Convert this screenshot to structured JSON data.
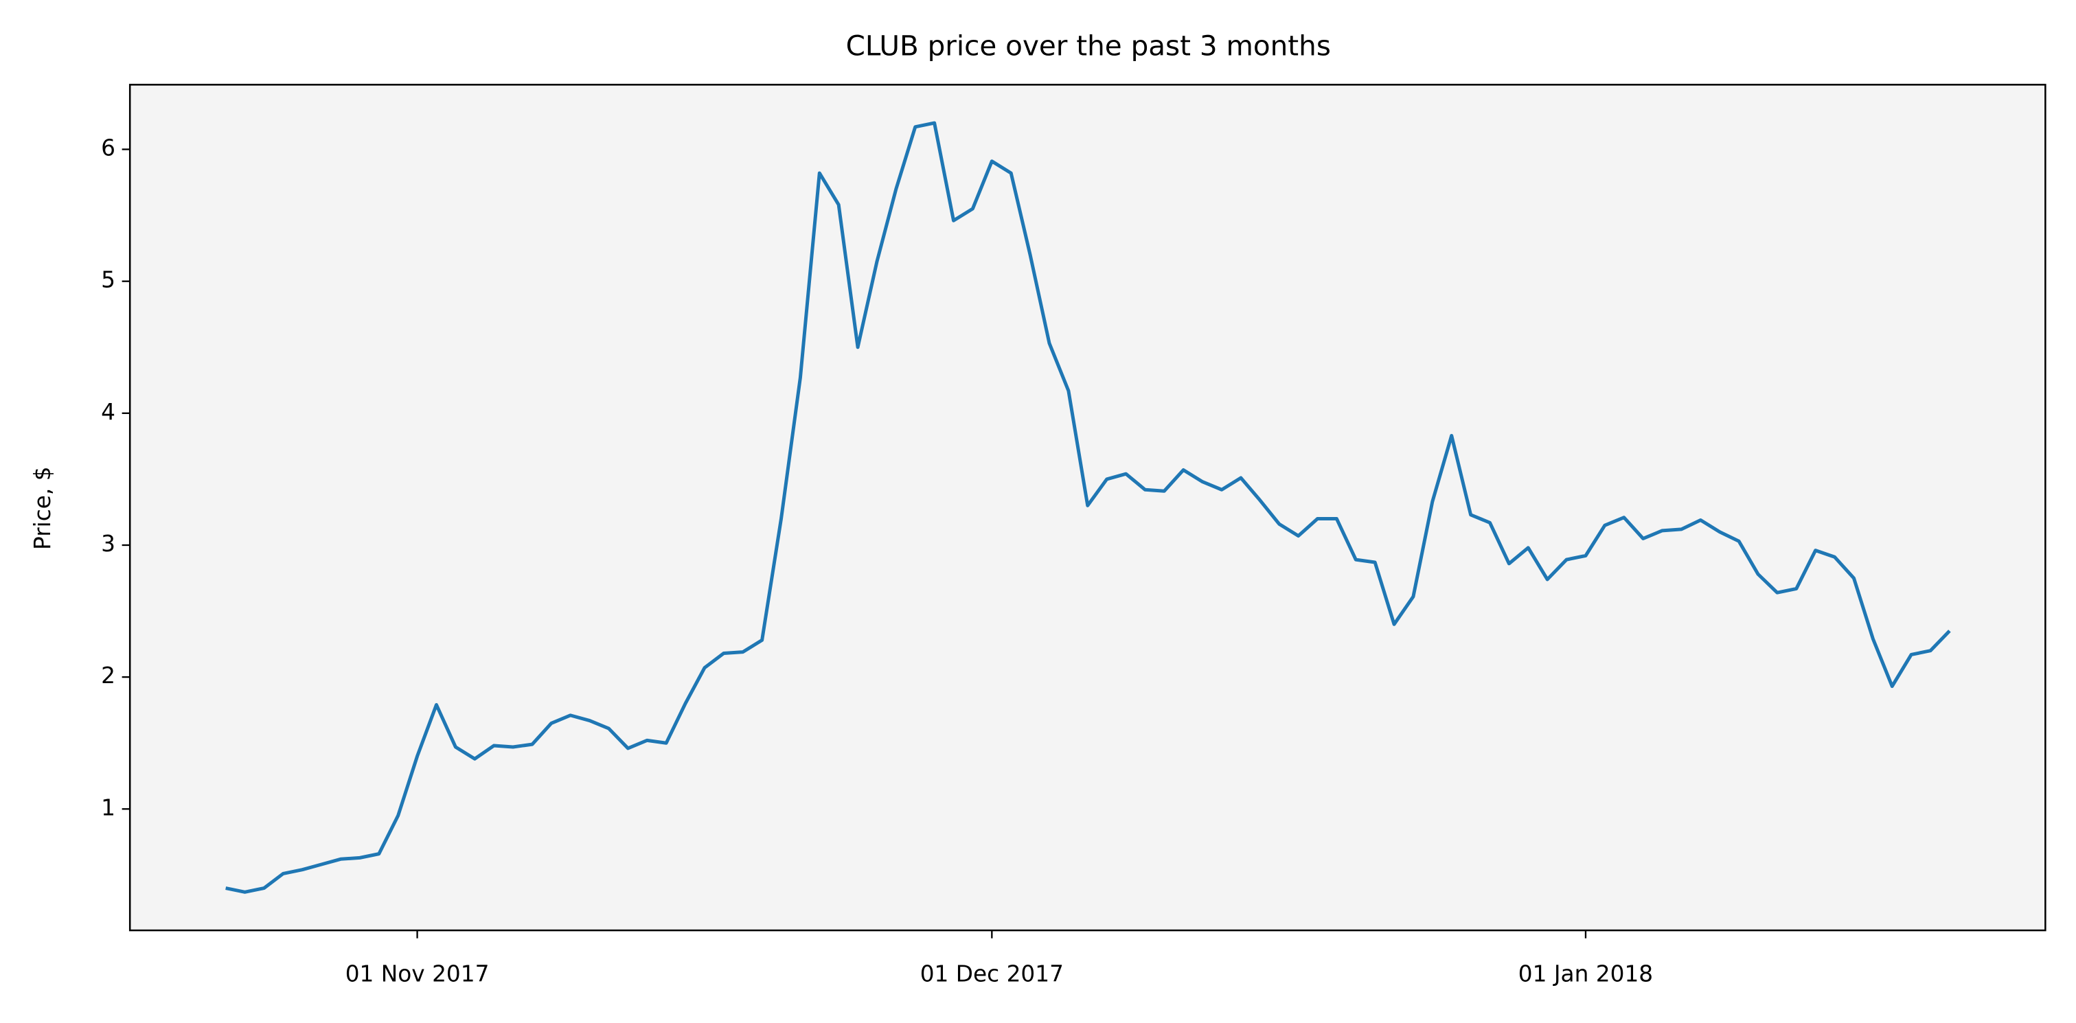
{
  "chart_data": {
    "type": "line",
    "title": "CLUB price over the past 3 months",
    "ylabel": "Price, $",
    "x": [
      "2017-10-22",
      "2017-10-23",
      "2017-10-24",
      "2017-10-25",
      "2017-10-26",
      "2017-10-27",
      "2017-10-28",
      "2017-10-29",
      "2017-10-30",
      "2017-10-31",
      "2017-11-01",
      "2017-11-02",
      "2017-11-03",
      "2017-11-04",
      "2017-11-05",
      "2017-11-06",
      "2017-11-07",
      "2017-11-08",
      "2017-11-09",
      "2017-11-10",
      "2017-11-11",
      "2017-11-12",
      "2017-11-13",
      "2017-11-14",
      "2017-11-15",
      "2017-11-16",
      "2017-11-17",
      "2017-11-18",
      "2017-11-19",
      "2017-11-20",
      "2017-11-21",
      "2017-11-22",
      "2017-11-23",
      "2017-11-24",
      "2017-11-25",
      "2017-11-26",
      "2017-11-27",
      "2017-11-28",
      "2017-11-29",
      "2017-11-30",
      "2017-12-01",
      "2017-12-02",
      "2017-12-03",
      "2017-12-04",
      "2017-12-05",
      "2017-12-06",
      "2017-12-07",
      "2017-12-08",
      "2017-12-09",
      "2017-12-10",
      "2017-12-11",
      "2017-12-12",
      "2017-12-13",
      "2017-12-14",
      "2017-12-15",
      "2017-12-16",
      "2017-12-17",
      "2017-12-18",
      "2017-12-19",
      "2017-12-20",
      "2017-12-21",
      "2017-12-22",
      "2017-12-23",
      "2017-12-24",
      "2017-12-25",
      "2017-12-26",
      "2017-12-27",
      "2017-12-28",
      "2017-12-29",
      "2017-12-30",
      "2017-12-31",
      "2018-01-01",
      "2018-01-02",
      "2018-01-03",
      "2018-01-04",
      "2018-01-05",
      "2018-01-06",
      "2018-01-07",
      "2018-01-08",
      "2018-01-09",
      "2018-01-10",
      "2018-01-11",
      "2018-01-12",
      "2018-01-13",
      "2018-01-14",
      "2018-01-15",
      "2018-01-16",
      "2018-01-17",
      "2018-01-18",
      "2018-01-19",
      "2018-01-20"
    ],
    "series": [
      {
        "color": "#1f77b4",
        "values": [
          0.4,
          0.37,
          0.4,
          0.51,
          0.54,
          0.58,
          0.62,
          0.63,
          0.66,
          0.95,
          1.4,
          1.79,
          1.47,
          1.38,
          1.48,
          1.47,
          1.49,
          1.65,
          1.71,
          1.67,
          1.61,
          1.46,
          1.52,
          1.5,
          1.8,
          2.07,
          2.18,
          2.19,
          2.28,
          3.2,
          4.27,
          5.82,
          5.58,
          4.5,
          5.15,
          5.7,
          6.17,
          6.2,
          5.46,
          5.55,
          5.91,
          5.82,
          5.2,
          4.53,
          4.17,
          3.3,
          3.5,
          3.54,
          3.42,
          3.41,
          3.57,
          3.48,
          3.42,
          3.51,
          3.34,
          3.16,
          3.07,
          3.2,
          3.2,
          2.89,
          2.87,
          2.4,
          2.61,
          3.33,
          3.83,
          3.23,
          3.17,
          2.86,
          2.98,
          2.74,
          2.89,
          2.92,
          3.15,
          3.21,
          3.05,
          3.11,
          3.12,
          3.19,
          3.1,
          3.03,
          2.78,
          2.64,
          2.67,
          2.96,
          2.91,
          2.75,
          2.29,
          1.93,
          2.17,
          2.2,
          2.35
        ]
      }
    ],
    "xlim": [
      "2017-10-17",
      "2018-01-25"
    ],
    "xticks": [
      {
        "value": "2017-11-01",
        "label": "01 Nov 2017"
      },
      {
        "value": "2017-12-01",
        "label": "01 Dec 2017"
      },
      {
        "value": "2018-01-01",
        "label": "01 Jan 2018"
      }
    ],
    "ylim": [
      0.08,
      6.49
    ],
    "yticks": [
      1,
      2,
      3,
      4,
      5,
      6
    ],
    "background": "#f4f4f4",
    "grid": false
  }
}
